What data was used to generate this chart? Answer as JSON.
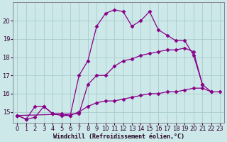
{
  "xlabel": "Windchill (Refroidissement éolien,°C)",
  "bg_color": "#cce8e8",
  "line_color": "#880088",
  "grid_color": "#aacccc",
  "ylim": [
    14.4,
    21.0
  ],
  "xlim": [
    -0.5,
    23.5
  ],
  "yticks": [
    15,
    16,
    17,
    18,
    19,
    20
  ],
  "xticks": [
    0,
    1,
    2,
    3,
    4,
    5,
    6,
    7,
    8,
    9,
    10,
    11,
    12,
    13,
    14,
    15,
    16,
    17,
    18,
    19,
    20,
    21,
    22,
    23
  ],
  "line1_x": [
    0,
    1,
    2,
    3,
    4,
    5,
    6,
    7,
    8,
    9,
    10,
    11,
    12,
    13,
    14,
    15,
    16,
    17,
    18,
    19,
    20,
    21
  ],
  "line1_y": [
    14.8,
    14.6,
    14.7,
    15.3,
    14.9,
    14.8,
    14.8,
    17.0,
    17.8,
    19.7,
    20.4,
    20.6,
    20.5,
    19.7,
    20.0,
    20.5,
    19.5,
    19.2,
    18.9,
    18.9,
    18.1,
    16.5
  ],
  "line2_x": [
    0,
    7,
    8,
    9,
    10,
    11,
    12,
    13,
    14,
    15,
    16,
    17,
    18,
    19,
    20,
    21,
    22
  ],
  "line2_y": [
    14.8,
    14.9,
    16.5,
    17.0,
    17.0,
    17.5,
    17.8,
    17.9,
    18.1,
    18.2,
    18.3,
    18.4,
    18.4,
    18.5,
    18.3,
    16.5,
    16.1
  ],
  "line3_x": [
    0,
    1,
    2,
    3,
    4,
    5,
    6,
    7,
    8,
    9,
    10,
    11,
    12,
    13,
    14,
    15,
    16,
    17,
    18,
    19,
    20,
    21,
    22,
    23
  ],
  "line3_y": [
    14.8,
    14.6,
    15.3,
    15.3,
    14.9,
    14.9,
    14.8,
    15.0,
    15.3,
    15.5,
    15.6,
    15.6,
    15.7,
    15.8,
    15.9,
    16.0,
    16.0,
    16.1,
    16.1,
    16.2,
    16.3,
    16.3,
    16.1,
    16.1
  ]
}
